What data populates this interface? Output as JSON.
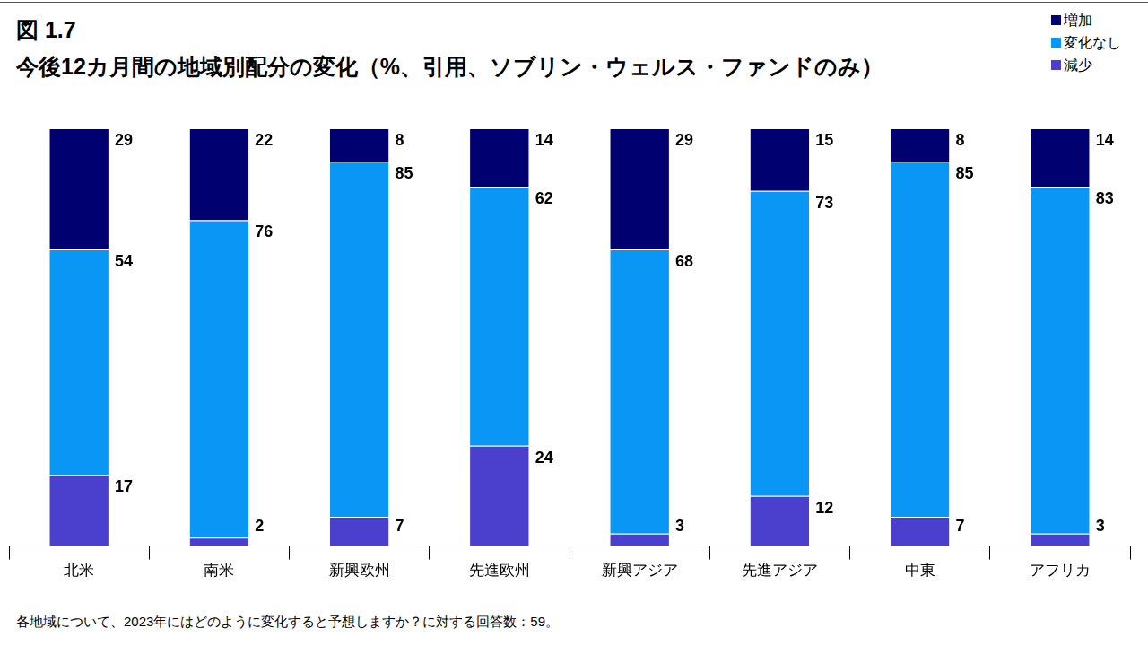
{
  "chart_data": {
    "type": "bar",
    "title": "図 1.7",
    "subtitle": "今後12カ月間の地域別配分の変化（%、引用、ソブリン・ウェルス・ファンドのみ）",
    "footnote": "各地域について、2023年にはどのように変化すると予想しますか？に対する回答数：59。",
    "categories": [
      "北米",
      "南米",
      "新興欧州",
      "先進欧州",
      "新興アジア",
      "先進アジア",
      "中東",
      "アフリカ"
    ],
    "series": [
      {
        "name": "増加",
        "color": "#000070",
        "values": [
          29,
          22,
          8,
          14,
          29,
          15,
          8,
          14
        ]
      },
      {
        "name": "変化なし",
        "color": "#0a96f5",
        "values": [
          54,
          76,
          85,
          62,
          68,
          73,
          85,
          83
        ]
      },
      {
        "name": "減少",
        "color": "#4b3fcd",
        "values": [
          17,
          2,
          7,
          24,
          3,
          12,
          7,
          3
        ]
      }
    ],
    "ylim": [
      0,
      100
    ],
    "stacked": true,
    "data_labels": true,
    "tick_labels": "x",
    "grid": false,
    "legend": "top-right"
  }
}
